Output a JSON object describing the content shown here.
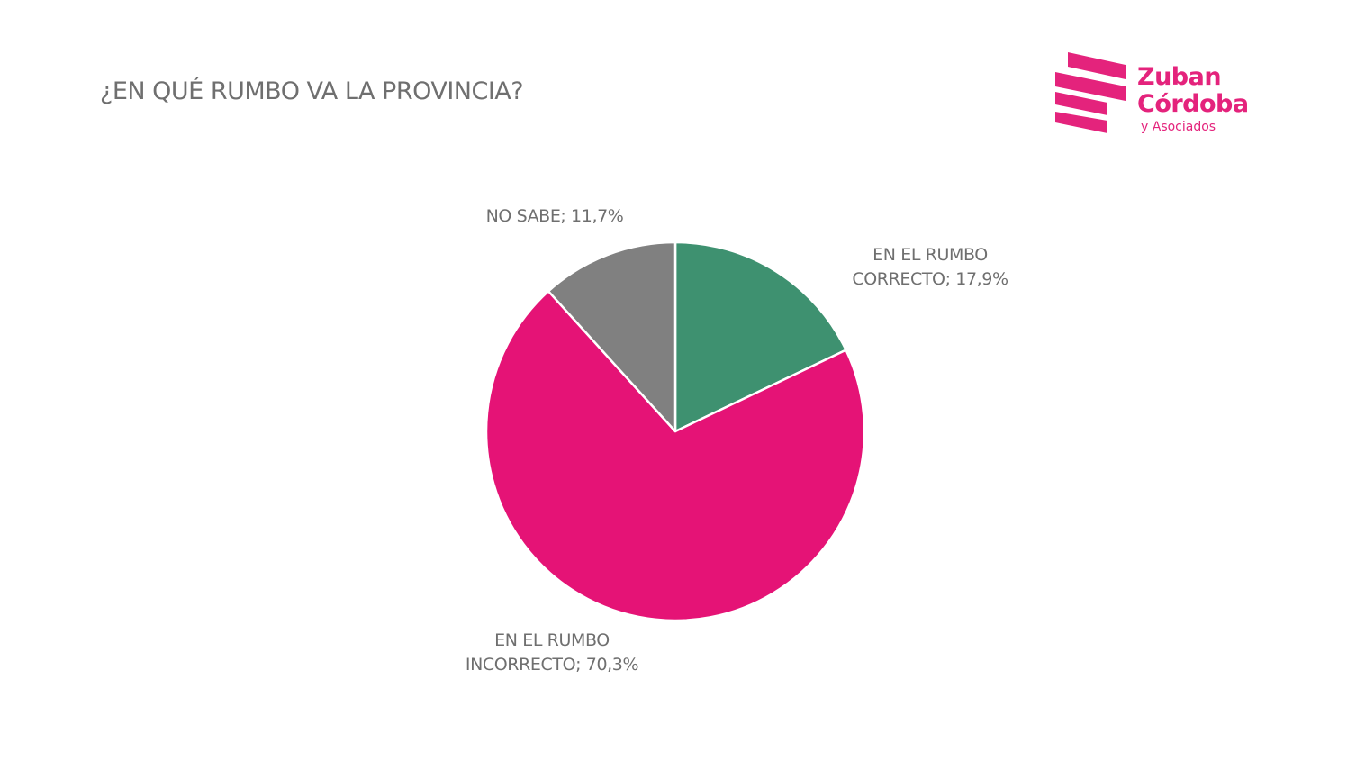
{
  "title": "¿EN QUÉ RUMBO VA LA PROVINCIA?",
  "logo": {
    "name_line1": "Zuban",
    "name_line2": "Córdoba",
    "subtitle": "y Asociados",
    "color": "#e4237c"
  },
  "chart_data": {
    "type": "pie",
    "title": "¿EN QUÉ RUMBO VA LA PROVINCIA?",
    "start_angle_deg": 0,
    "direction": "clockwise",
    "slices": [
      {
        "label_lines": [
          "EN EL RUMBO",
          "CORRECTO; 17,9%"
        ],
        "value": 17.9,
        "color": "#3e9170"
      },
      {
        "label_lines": [
          "EN EL RUMBO",
          "INCORRECTO; 70,3%"
        ],
        "value": 70.3,
        "color": "#e51376"
      },
      {
        "label_lines": [
          "NO SABE; 11,7%"
        ],
        "value": 11.7,
        "color": "#808080"
      }
    ],
    "legend": "none",
    "data_labels": "outside"
  }
}
